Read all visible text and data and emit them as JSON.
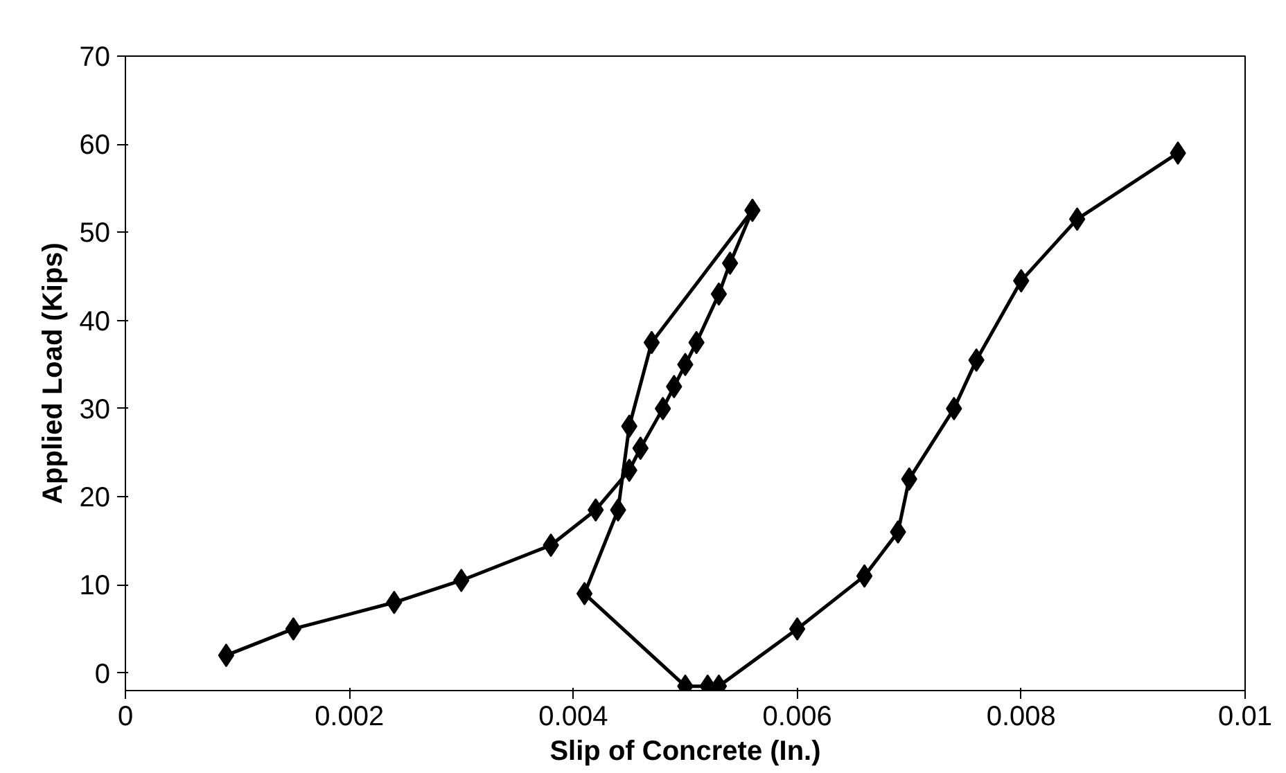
{
  "chart_data": {
    "type": "line",
    "xlabel": "Slip of Concrete (In.)",
    "ylabel": "Applied Load (Kips)",
    "xlim": [
      0,
      0.01
    ],
    "ylim": [
      -2,
      70
    ],
    "xticks": [
      0,
      0.002,
      0.004,
      0.006,
      0.008,
      0.01
    ],
    "yticks": [
      0,
      10,
      20,
      30,
      40,
      50,
      60,
      70
    ],
    "grid": false,
    "marker": "diamond",
    "line_style": "solid",
    "series": [
      {
        "color": "#000000",
        "x": [
          0.0009,
          0.0015,
          0.0024,
          0.003,
          0.0038,
          0.0042,
          0.0045,
          0.0046,
          0.0048,
          0.0049,
          0.005,
          0.0051,
          0.0053,
          0.0054,
          0.0056,
          0.0047,
          0.0045,
          0.0044,
          0.0041,
          0.005,
          0.0052,
          0.0053,
          0.006,
          0.0066,
          0.0069,
          0.007,
          0.0074,
          0.0076,
          0.008,
          0.0085,
          0.0094
        ],
        "values": [
          2,
          5,
          8,
          10.5,
          14.5,
          18.5,
          23,
          25.5,
          30,
          32.5,
          35,
          37.5,
          43,
          46.5,
          52.5,
          37.5,
          28,
          18.5,
          9,
          -1.5,
          -1.5,
          -1.5,
          5,
          11,
          16,
          22,
          30,
          35.5,
          44.5,
          51.5,
          59
        ]
      }
    ]
  }
}
